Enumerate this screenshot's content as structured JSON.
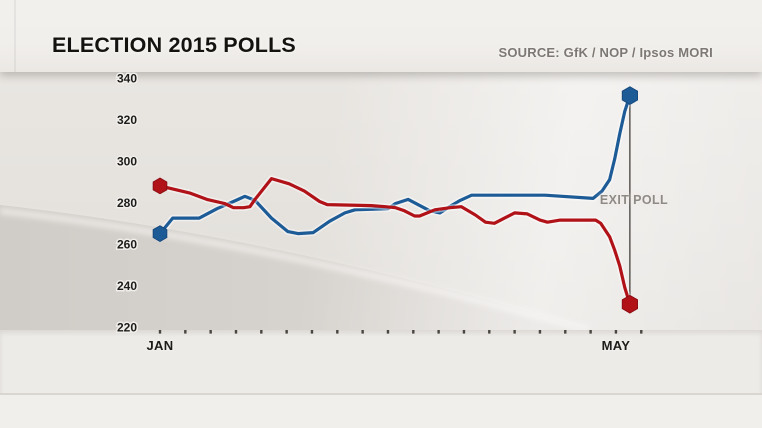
{
  "header": {
    "title": "ELECTION 2015 POLLS",
    "source": "SOURCE: GfK / NOP / Ipsos MORI"
  },
  "chart_data": {
    "type": "line",
    "title": "ELECTION 2015 POLLS",
    "grid": false,
    "legend": false,
    "x_axis": {
      "tick_count": 20,
      "unit": "poll interval (Jan to May 2015)",
      "labels": [
        {
          "text": "JAN",
          "tick": 0
        },
        {
          "text": "MAY",
          "tick": 18
        }
      ]
    },
    "y_axis": {
      "min": 220,
      "max": 340,
      "tick_step": 20
    },
    "series": [
      {
        "name": "blue-poll-line",
        "color": "#1d5b97",
        "marker_stroke": "#164a7e",
        "points": [
          [
            0,
            265
          ],
          [
            0.5,
            272.5
          ],
          [
            1.55,
            272.5
          ],
          [
            2.25,
            277
          ],
          [
            3.0,
            281
          ],
          [
            3.35,
            283
          ],
          [
            3.75,
            281
          ],
          [
            4.4,
            272.5
          ],
          [
            5.05,
            266
          ],
          [
            5.45,
            265
          ],
          [
            6.05,
            265.5
          ],
          [
            6.7,
            271
          ],
          [
            7.3,
            275
          ],
          [
            7.7,
            276.5
          ],
          [
            9.0,
            277
          ],
          [
            9.3,
            279.5
          ],
          [
            9.8,
            281.5
          ],
          [
            10.65,
            276
          ],
          [
            11.05,
            275
          ],
          [
            11.5,
            278.5
          ],
          [
            11.85,
            281
          ],
          [
            12.3,
            283.5
          ],
          [
            15.2,
            283.5
          ],
          [
            17.1,
            282
          ],
          [
            17.45,
            285.5
          ],
          [
            17.75,
            291
          ],
          [
            17.95,
            301
          ],
          [
            18.15,
            313
          ],
          [
            18.35,
            324
          ],
          [
            18.55,
            331.5
          ]
        ]
      },
      {
        "name": "red-poll-line",
        "color": "#b01218",
        "marker_stroke": "#8e0e14",
        "points": [
          [
            0,
            288
          ],
          [
            1.2,
            284.5
          ],
          [
            1.85,
            281.5
          ],
          [
            2.55,
            279.5
          ],
          [
            2.9,
            277.5
          ],
          [
            3.3,
            277.5
          ],
          [
            3.55,
            278
          ],
          [
            3.75,
            281.5
          ],
          [
            4.4,
            291.5
          ],
          [
            5.1,
            289
          ],
          [
            5.7,
            285.5
          ],
          [
            6.3,
            280.5
          ],
          [
            6.6,
            279
          ],
          [
            8.35,
            278.5
          ],
          [
            8.9,
            278
          ],
          [
            9.3,
            277.5
          ],
          [
            9.65,
            276
          ],
          [
            10.05,
            273.5
          ],
          [
            10.25,
            273.5
          ],
          [
            10.85,
            276.5
          ],
          [
            11.45,
            277.5
          ],
          [
            11.9,
            278
          ],
          [
            12.45,
            274
          ],
          [
            12.85,
            270.5
          ],
          [
            13.2,
            270
          ],
          [
            13.6,
            272.5
          ],
          [
            14.0,
            275
          ],
          [
            14.5,
            274.5
          ],
          [
            15.0,
            271.5
          ],
          [
            15.3,
            270.5
          ],
          [
            15.8,
            271.5
          ],
          [
            17.2,
            271.5
          ],
          [
            17.4,
            270
          ],
          [
            17.75,
            263.5
          ],
          [
            17.95,
            257
          ],
          [
            18.15,
            249.5
          ],
          [
            18.35,
            239
          ],
          [
            18.55,
            231
          ]
        ]
      }
    ],
    "annotation": {
      "label": "EXIT POLL",
      "x": 18.55,
      "blue_end_value": 331.5,
      "red_end_value": 231,
      "connector_line": true
    }
  },
  "colors": {
    "blue": "#1d5b97",
    "red": "#b01218",
    "axis_text": "#1e1c1a",
    "annotation_text": "#8e8a85",
    "tick": "#38342f",
    "connector": "#45413d",
    "background": "#e6e3df",
    "header_band": "#f1efec"
  }
}
